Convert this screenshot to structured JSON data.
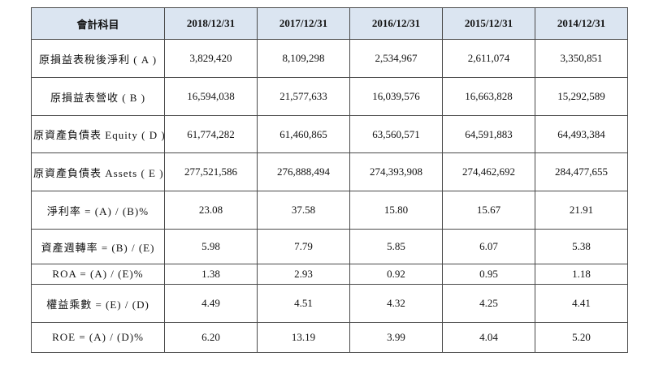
{
  "colors": {
    "header_bg": "#dbe5f1",
    "border": "#4a4a4a",
    "text": "#121212"
  },
  "table": {
    "header": [
      "會計科目",
      "2018/12/31",
      "2017/12/31",
      "2016/12/31",
      "2015/12/31",
      "2014/12/31"
    ],
    "rows": [
      {
        "label": "原損益表稅後淨利 ( A )",
        "values": [
          "3,829,420",
          "8,109,298",
          "2,534,967",
          "2,611,074",
          "3,350,851"
        ]
      },
      {
        "label": "原損益表營收 ( B )",
        "values": [
          "16,594,038",
          "21,577,633",
          "16,039,576",
          "16,663,828",
          "15,292,589"
        ]
      },
      {
        "label": "原資產負債表 Equity ( D )",
        "values": [
          "61,774,282",
          "61,460,865",
          "63,560,571",
          "64,591,883",
          "64,493,384"
        ]
      },
      {
        "label": "原資產負債表 Assets ( E )",
        "values": [
          "277,521,586",
          "276,888,494",
          "274,393,908",
          "274,462,692",
          "284,477,655"
        ]
      },
      {
        "label": "淨利率 = (A) / (B)%",
        "values": [
          "23.08",
          "37.58",
          "15.80",
          "15.67",
          "21.91"
        ]
      },
      {
        "label": "資產週轉率 = (B) / (E)",
        "values": [
          "5.98",
          "7.79",
          "5.85",
          "6.07",
          "5.38"
        ]
      },
      {
        "label": "ROA = (A) / (E)%",
        "values": [
          "1.38",
          "2.93",
          "0.92",
          "0.95",
          "1.18"
        ]
      },
      {
        "label": "權益乘數 = (E) / (D)",
        "values": [
          "4.49",
          "4.51",
          "4.32",
          "4.25",
          "4.41"
        ]
      },
      {
        "label": "ROE = (A) / (D)%",
        "values": [
          "6.20",
          "13.19",
          "3.99",
          "4.04",
          "5.20"
        ]
      }
    ]
  }
}
